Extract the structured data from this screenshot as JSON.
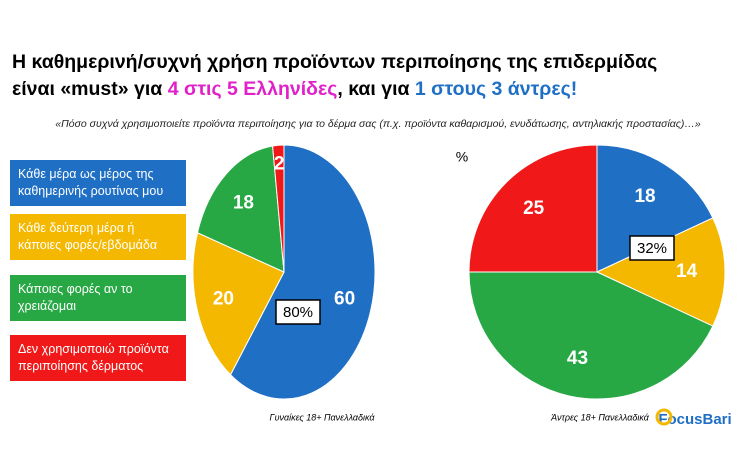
{
  "title_lines": [
    [
      {
        "text": "Η καθημερινή/συχνή χρήση προϊόντων περιποίησης της επιδερμίδας",
        "color": "#000000"
      }
    ],
    [
      {
        "text": "είναι «must» για ",
        "color": "#000000"
      },
      {
        "text": "4 στις 5 Ελληνίδες",
        "color": "#e020c8"
      },
      {
        "text": ", και για ",
        "color": "#000000"
      },
      {
        "text": "1 στους 3 άντρες!",
        "color": "#1f6fc5"
      }
    ]
  ],
  "subtitle": "«Πόσο συχνά χρησιμοποιείτε προϊόντα περιποίησης για το δέρμα σας (π.χ. προϊόντα καθαρισμού, ενυδάτωσης, αντηλιακής προστασίας)…»",
  "unit": "%",
  "legend": [
    {
      "label": "Κάθε μέρα ως μέρος της καθημερινής ρουτίνας μου",
      "color": "#1f6fc5"
    },
    {
      "label": "Κάθε δεύτερη μέρα ή κάποιες φορές/εβδομάδα",
      "color": "#f5b800"
    },
    {
      "label": "Κάποιες φορές αν το χρειάζομαι",
      "color": "#27a844"
    },
    {
      "label": "Δεν χρησιμοποιώ προϊόντα περιποίησης δέρματος",
      "color": "#f01818"
    }
  ],
  "logo": "FocusBari",
  "chart_data": [
    {
      "type": "pie",
      "values": [
        60,
        20,
        18,
        2
      ],
      "annotation": "80%",
      "caption": "Γυναίκες 18+ Πανελλαδικά"
    },
    {
      "type": "pie",
      "values": [
        18,
        14,
        43,
        25
      ],
      "annotation": "32%",
      "caption": "Άντρες 18+ Πανελλαδικά"
    }
  ]
}
